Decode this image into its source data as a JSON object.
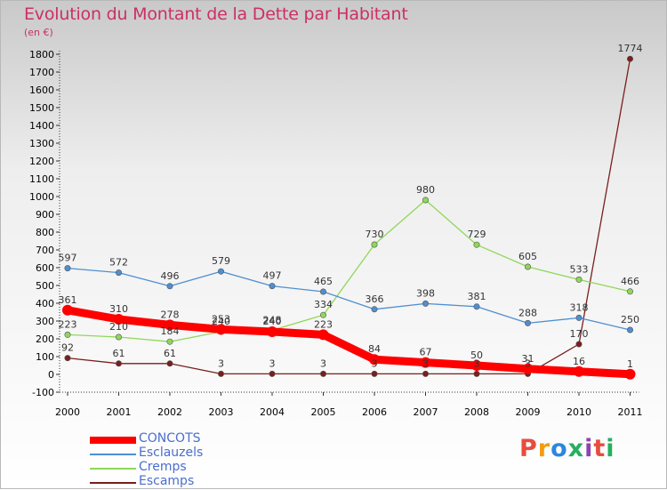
{
  "title": "Evolution du Montant de la Dette par Habitant",
  "subtitle": "(en €)",
  "logo": {
    "text": "Proxiti",
    "colors": [
      "#e84c3d",
      "#f39c12",
      "#2e86de",
      "#27ae60",
      "#8e44ad",
      "#e84c3d",
      "#27ae60"
    ]
  },
  "chart_data": {
    "type": "line",
    "title": "Evolution du Montant de la Dette par Habitant",
    "ylabel": "(en €)",
    "xlabel": "",
    "ylim": [
      -100,
      1800
    ],
    "ytick_step": 100,
    "grid": false,
    "legend_position": "bottom-left",
    "categories": [
      "2000",
      "2001",
      "2002",
      "2003",
      "2004",
      "2005",
      "2006",
      "2007",
      "2008",
      "2009",
      "2010",
      "2011"
    ],
    "series": [
      {
        "name": "CONCOTS",
        "color": "#ff0000",
        "values": [
          361,
          310,
          278,
          253,
          240,
          223,
          84,
          67,
          50,
          31,
          16,
          1
        ],
        "labels": [
          "361",
          "310",
          "278",
          "253",
          "240",
          "223",
          "84",
          "67",
          "50",
          "31",
          "16",
          "1"
        ]
      },
      {
        "name": "Esclauzels",
        "color": "#4f8fd0",
        "values": [
          597,
          572,
          496,
          579,
          497,
          465,
          366,
          398,
          381,
          288,
          318,
          250
        ],
        "labels": [
          "597",
          "572",
          "496",
          "579",
          "497",
          "465",
          "366",
          "398",
          "381",
          "288",
          "318",
          "250"
        ]
      },
      {
        "name": "Cremps",
        "color": "#8fd75a",
        "values": [
          223,
          210,
          184,
          240,
          248,
          334,
          730,
          980,
          729,
          605,
          533,
          466
        ],
        "labels": [
          "223",
          "210",
          "184",
          "240",
          "248",
          "334",
          "730",
          "980",
          "729",
          "605",
          "533",
          "466"
        ]
      },
      {
        "name": "Escamps",
        "color": "#7a1e1e",
        "values": [
          92,
          61,
          61,
          3,
          3,
          3,
          3,
          3,
          3,
          3,
          170,
          1774
        ],
        "labels": [
          "92",
          "61",
          "61",
          "3",
          "3",
          "3",
          "3",
          "3",
          "3",
          "3",
          "170",
          "1774"
        ]
      }
    ]
  }
}
